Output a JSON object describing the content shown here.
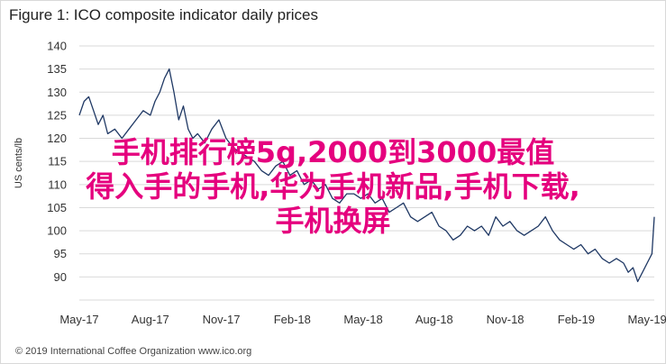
{
  "figure": {
    "title": "Figure 1: ICO composite indicator daily prices",
    "footer": "© 2019 International Coffee Organization www.ico.org"
  },
  "overlay": {
    "line1": "手机排行榜5g,2000到3000最值",
    "line2": "得入手的手机,华为手机新品,手机下载,",
    "line3": "手机换屏"
  },
  "colors": {
    "line": "#1f3864",
    "grid": "#d9d9d9",
    "overlay": "#e5007e"
  },
  "chart_data": {
    "type": "line",
    "title": "Figure 1: ICO composite indicator daily prices",
    "xlabel": "",
    "ylabel": "US cents/lb",
    "ylim": [
      85,
      140
    ],
    "yticks": [
      85,
      90,
      95,
      100,
      105,
      110,
      115,
      120,
      125,
      130,
      135,
      140
    ],
    "xlim": [
      0,
      24.3
    ],
    "xticks": [
      0,
      3,
      6,
      9,
      12,
      15,
      18,
      21,
      24
    ],
    "xtick_labels": [
      "May-17",
      "Aug-17",
      "Nov-17",
      "Feb-18",
      "May-18",
      "Aug-18",
      "Nov-18",
      "Feb-19",
      "May-19"
    ],
    "grid": true,
    "series": [
      {
        "x": [
          0.0,
          0.2,
          0.4,
          0.6,
          0.8,
          1.0,
          1.2,
          1.5,
          1.8,
          2.1,
          2.4,
          2.7,
          3.0,
          3.2,
          3.4,
          3.6,
          3.8,
          4.0,
          4.2,
          4.4,
          4.6,
          4.8,
          5.0,
          5.3,
          5.6,
          5.9,
          6.2,
          6.5,
          6.8,
          7.1,
          7.4,
          7.7,
          8.0,
          8.3,
          8.6,
          8.9,
          9.2,
          9.5,
          9.8,
          10.1,
          10.4,
          10.7,
          11.0,
          11.3,
          11.6,
          11.9,
          12.2,
          12.5,
          12.8,
          13.1,
          13.4,
          13.7,
          14.0,
          14.3,
          14.6,
          14.9,
          15.2,
          15.5,
          15.8,
          16.1,
          16.4,
          16.7,
          17.0,
          17.3,
          17.6,
          17.9,
          18.2,
          18.5,
          18.8,
          19.1,
          19.4,
          19.7,
          20.0,
          20.3,
          20.6,
          20.9,
          21.2,
          21.5,
          21.8,
          22.1,
          22.4,
          22.7,
          23.0,
          23.2,
          23.4,
          23.6,
          23.8,
          24.0,
          24.2,
          24.3
        ],
        "y": [
          125,
          128,
          129,
          126,
          123,
          125,
          121,
          122,
          120,
          122,
          124,
          126,
          125,
          128,
          130,
          133,
          135,
          130,
          124,
          127,
          122,
          120,
          121,
          119,
          122,
          124,
          120,
          118,
          117,
          116,
          115,
          113,
          112,
          114,
          115,
          112,
          113,
          110,
          111,
          109,
          110,
          107,
          106,
          108,
          108,
          107,
          108,
          106,
          107,
          104,
          105,
          106,
          103,
          102,
          103,
          104,
          101,
          100,
          98,
          99,
          101,
          100,
          101,
          99,
          103,
          101,
          102,
          100,
          99,
          100,
          101,
          103,
          100,
          98,
          97,
          96,
          97,
          95,
          96,
          94,
          93,
          94,
          93,
          91,
          92,
          89,
          91,
          93,
          95,
          103
        ]
      }
    ]
  }
}
